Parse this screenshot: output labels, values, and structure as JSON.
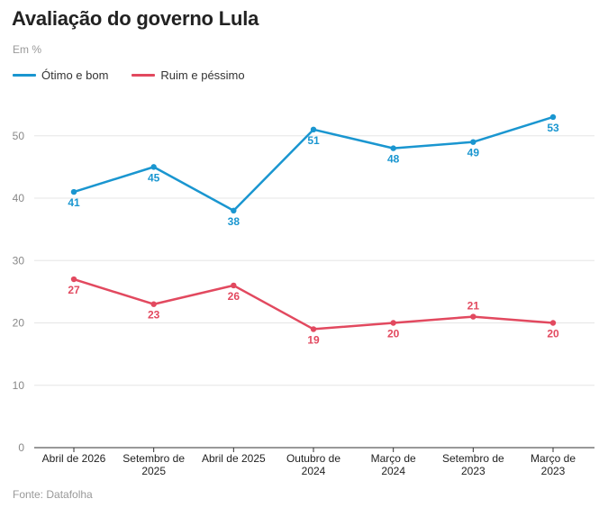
{
  "chart_data": {
    "type": "line",
    "title": "Avaliação do governo Lula",
    "subtitle": "Em %",
    "source": "Fonte: Datafolha",
    "xlabel": "",
    "ylabel": "",
    "ylim": [
      0,
      55
    ],
    "yticks": [
      0,
      10,
      20,
      30,
      40,
      50
    ],
    "grid": true,
    "legend_position": "top-left",
    "categories": [
      "Abril de 2026",
      "Setembro de 2025",
      "Abril de 2025",
      "Outubro de 2024",
      "Março de 2024",
      "Setembro de 2023",
      "Março de 2023"
    ],
    "category_lines": [
      [
        "Abril de 2026"
      ],
      [
        "Setembro de",
        "2025"
      ],
      [
        "Abril de 2025"
      ],
      [
        "Outubro de",
        "2024"
      ],
      [
        "Março de",
        "2024"
      ],
      [
        "Setembro de",
        "2023"
      ],
      [
        "Março de",
        "2023"
      ]
    ],
    "series": [
      {
        "name": "Ótimo e bom",
        "color": "#1a96d0",
        "values": [
          41,
          45,
          38,
          51,
          48,
          49,
          53
        ],
        "label_position": [
          "below",
          "below",
          "below",
          "below",
          "below",
          "below",
          "below"
        ]
      },
      {
        "name": "Ruim e péssimo",
        "color": "#e2495f",
        "values": [
          27,
          23,
          26,
          19,
          20,
          21,
          20
        ],
        "label_position": [
          "below",
          "below",
          "below",
          "below",
          "below",
          "above",
          "below"
        ]
      }
    ]
  }
}
